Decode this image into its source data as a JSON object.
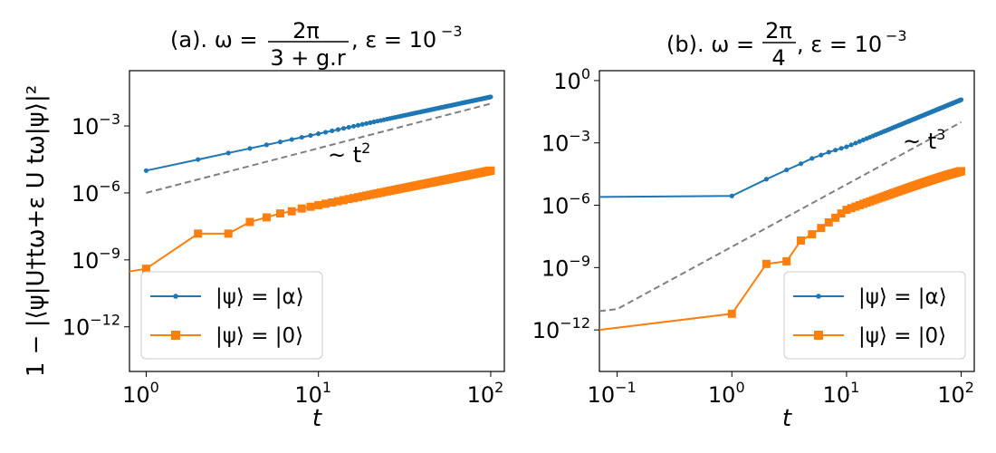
{
  "figure": {
    "ylabel": "1 − |⟨ψ|U†tω+ε U tω|ψ⟩|²"
  },
  "chart_data": [
    {
      "type": "line",
      "title": {
        "prefix": "(a). ω =",
        "frac_num": "2π",
        "frac_den": "3 + g.r",
        "suffix": ", ε = 10",
        "suffix_exp": "−3"
      },
      "xlabel": "t",
      "ylabel": "1 − |⟨ψ|U†tω+ε U tω|ψ⟩|²",
      "xscale": "log",
      "yscale": "log",
      "xlim": [
        0.8,
        120
      ],
      "ylim": [
        1e-14,
        0.3
      ],
      "xticks": [
        {
          "value": 1,
          "base": "10",
          "exp": "0"
        },
        {
          "value": 10,
          "base": "10",
          "exp": "1"
        },
        {
          "value": 100,
          "base": "10",
          "exp": "2"
        }
      ],
      "yticks": [
        {
          "value": 1e-12,
          "base": "10",
          "exp": "−12"
        },
        {
          "value": 1e-09,
          "base": "10",
          "exp": "−9"
        },
        {
          "value": 1e-06,
          "base": "10",
          "exp": "−6"
        },
        {
          "value": 0.001,
          "base": "10",
          "exp": "−3"
        }
      ],
      "reference": {
        "style": "dashed",
        "x": [
          1,
          100
        ],
        "y": [
          1e-06,
          0.01
        ],
        "label_prefix": "~ t",
        "label_exp": "2",
        "label_x": 11,
        "label_y": 8e-05
      },
      "series": [
        {
          "name": "|ψ⟩ = |α⟩",
          "color": "#1f77b4",
          "marker": "circle",
          "x_range": [
            1,
            100
          ],
          "log_slope": 2,
          "y_at_first": 1e-05,
          "y_at_last": 0.02
        },
        {
          "name": "|ψ⟩ = |0⟩",
          "color": "#ff7f0e",
          "marker": "square",
          "x_range": [
            1,
            100
          ],
          "log_slope": 2,
          "points": [
            [
              0.8,
              3e-10
            ],
            [
              1,
              4e-10
            ],
            [
              2,
              1.5e-08
            ],
            [
              3,
              1.5e-08
            ],
            [
              4,
              5e-08
            ],
            [
              5,
              8e-08
            ],
            [
              6,
              1.2e-07
            ],
            [
              7,
              1.5e-07
            ],
            [
              8,
              2e-07
            ]
          ],
          "y_at_last": 1e-05
        }
      ],
      "legend": {
        "location": "lower-left"
      }
    },
    {
      "type": "line",
      "title": {
        "prefix": "(b). ω =",
        "frac_num": "2π",
        "frac_den": "4",
        "suffix": ", ε = 10",
        "suffix_exp": "−3"
      },
      "xlabel": "t",
      "ylabel": "",
      "xscale": "log",
      "yscale": "log",
      "xlim": [
        0.07,
        130
      ],
      "ylim": [
        1e-14,
        3
      ],
      "xticks": [
        {
          "value": 0.1,
          "base": "10",
          "exp": "−1"
        },
        {
          "value": 1,
          "base": "10",
          "exp": "0"
        },
        {
          "value": 10,
          "base": "10",
          "exp": "1"
        },
        {
          "value": 100,
          "base": "10",
          "exp": "2"
        }
      ],
      "yticks": [
        {
          "value": 1e-12,
          "base": "10",
          "exp": "−12"
        },
        {
          "value": 1e-09,
          "base": "10",
          "exp": "−9"
        },
        {
          "value": 1e-06,
          "base": "10",
          "exp": "−6"
        },
        {
          "value": 0.001,
          "base": "10",
          "exp": "−3"
        },
        {
          "value": 1,
          "base": "10",
          "exp": "0"
        }
      ],
      "reference": {
        "style": "dashed",
        "points": [
          [
            0.07,
            8e-12
          ],
          [
            0.1,
            1e-11
          ],
          [
            100,
            0.01
          ]
        ],
        "label_prefix": "~ t",
        "label_exp": "3",
        "label_x": 30,
        "label_y": 0.0003
      },
      "series": [
        {
          "name": "|ψ⟩ = |α⟩",
          "color": "#1f77b4",
          "marker": "circle",
          "points": [
            [
              0.07,
              2.5e-06
            ],
            [
              1,
              2.8e-06
            ],
            [
              2,
              1.8e-05
            ],
            [
              3,
              5e-05
            ],
            [
              4,
              0.0001
            ],
            [
              5,
              0.00018
            ],
            [
              6,
              0.00026
            ],
            [
              7,
              0.00036
            ],
            [
              8,
              0.00045
            ],
            [
              9,
              0.00055
            ],
            [
              10,
              0.00065
            ]
          ],
          "log_slope": 3,
          "y_at_last": 0.12
        },
        {
          "name": "|ψ⟩ = |0⟩",
          "color": "#ff7f0e",
          "marker": "square",
          "points": [
            [
              0.07,
              1e-12
            ],
            [
              1,
              6e-12
            ],
            [
              2,
              1.5e-09
            ],
            [
              3,
              2e-09
            ],
            [
              4,
              2e-08
            ],
            [
              5,
              4e-08
            ],
            [
              6,
              8e-08
            ],
            [
              7,
              1.5e-07
            ],
            [
              8,
              2.5e-07
            ],
            [
              9,
              4e-07
            ],
            [
              10,
              6e-07
            ]
          ],
          "log_slope": 3,
          "y_at_last": 0.00012
        },
        {
          "name": "",
          "color": "#ff7f0e",
          "marker": "square",
          "saturating": true
        }
      ],
      "legend": {
        "location": "lower-right"
      }
    }
  ]
}
